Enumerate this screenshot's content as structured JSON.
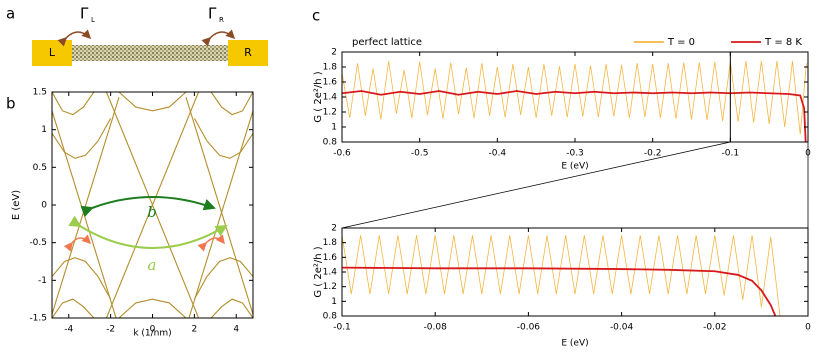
{
  "panel_labels": [
    "a",
    "b",
    "c"
  ],
  "diagram": {
    "left": "L",
    "right": "R",
    "gamma_left": {
      "symbol": "Γ",
      "sub": "L"
    },
    "gamma_right": {
      "symbol": "Γ",
      "sub": "R"
    }
  },
  "chart_data": [
    {
      "type": "line",
      "xlabel": "k (1/nm)",
      "ylabel": "E (eV)",
      "xlim": [
        -4.8,
        4.8
      ],
      "ylim": [
        -1.5,
        1.5
      ],
      "xticks": [
        -4,
        -2,
        0,
        2,
        4
      ],
      "yticks": [
        -1.5,
        -1,
        -0.5,
        0,
        0.5,
        1,
        1.5
      ],
      "annotations": [
        "b",
        "a"
      ],
      "series": [
        {
          "color": "#b38e2c",
          "x": [
            -4.8,
            -1.6
          ],
          "values": [
            -1.45,
            1.43
          ]
        },
        {
          "color": "#b38e2c",
          "x": [
            -4.8,
            -1.74
          ],
          "values": [
            1.25,
            -1.5
          ]
        },
        {
          "color": "#b38e2c",
          "x": [
            1.6,
            4.8
          ],
          "values": [
            1.43,
            -1.45
          ]
        },
        {
          "color": "#b38e2c",
          "x": [
            1.74,
            4.8
          ],
          "values": [
            -1.5,
            1.25
          ]
        },
        {
          "color": "#b38e2c",
          "x": [
            -2.2,
            2.2
          ],
          "values": [
            1.5,
            -1.5
          ]
        },
        {
          "color": "#b38e2c",
          "x": [
            -2.2,
            2.2
          ],
          "values": [
            -1.5,
            1.5
          ]
        },
        {
          "color": "#b38e2c",
          "x": [
            -4.8,
            -4.2,
            -3.7,
            -3.2,
            -2.6,
            -2.0
          ],
          "values": [
            0.95,
            0.7,
            0.62,
            0.66,
            0.85,
            1.15
          ]
        },
        {
          "color": "#b38e2c",
          "x": [
            2.0,
            2.6,
            3.2,
            3.7,
            4.2,
            4.8
          ],
          "values": [
            1.15,
            0.85,
            0.66,
            0.62,
            0.7,
            0.95
          ]
        },
        {
          "color": "#b38e2c",
          "x": [
            -4.8,
            -4.2,
            -3.7,
            -3.2,
            -2.6,
            -2.0
          ],
          "values": [
            -0.95,
            -0.75,
            -0.7,
            -0.75,
            -0.95,
            -1.25
          ]
        },
        {
          "color": "#b38e2c",
          "x": [
            2.0,
            2.6,
            3.2,
            3.7,
            4.2,
            4.8
          ],
          "values": [
            -1.25,
            -0.95,
            -0.75,
            -0.7,
            -0.75,
            -0.95
          ]
        },
        {
          "color": "#b38e2c",
          "x": [
            -1.6,
            -0.8,
            0,
            0.8,
            1.6
          ],
          "values": [
            1.5,
            1.3,
            1.25,
            1.3,
            1.5
          ]
        },
        {
          "color": "#b38e2c",
          "x": [
            -1.6,
            -0.8,
            0,
            0.8,
            1.6
          ],
          "values": [
            -1.5,
            -1.3,
            -1.25,
            -1.3,
            -1.5
          ]
        },
        {
          "color": "#b38e2c",
          "x": [
            -4.8,
            -4.3,
            -3.8,
            -3.3,
            -2.8
          ],
          "values": [
            1.5,
            1.25,
            1.2,
            1.3,
            1.5
          ]
        },
        {
          "color": "#b38e2c",
          "x": [
            2.8,
            3.3,
            3.8,
            4.3,
            4.8
          ],
          "values": [
            1.5,
            1.3,
            1.2,
            1.25,
            1.5
          ]
        },
        {
          "color": "#b38e2c",
          "x": [
            -4.8,
            -4.3,
            -3.8,
            -3.3,
            -2.8
          ],
          "values": [
            -1.5,
            -1.3,
            -1.25,
            -1.35,
            -1.5
          ]
        },
        {
          "color": "#b38e2c",
          "x": [
            2.8,
            3.3,
            3.8,
            4.3,
            4.8
          ],
          "values": [
            -1.5,
            -1.35,
            -1.25,
            -1.3,
            -1.5
          ]
        }
      ]
    },
    {
      "type": "line",
      "xlabel": "E (eV)",
      "ylabel": "G ( 2e²/h )",
      "annotation": "perfect lattice",
      "legend": "above",
      "xlim": [
        -0.6,
        0
      ],
      "ylim": [
        0.8,
        2
      ],
      "xticks": [
        -0.6,
        -0.5,
        -0.4,
        -0.3,
        -0.2,
        -0.1,
        0
      ],
      "yticks": [
        0.8,
        1,
        1.2,
        1.4,
        1.6,
        1.8,
        2
      ],
      "series": [
        {
          "name": "T = 0",
          "color": "#f5b642",
          "x": [
            -0.6,
            -0.59,
            -0.58,
            -0.57,
            -0.56,
            -0.55,
            -0.54,
            -0.53,
            -0.52,
            -0.51,
            -0.5,
            -0.49,
            -0.48,
            -0.47,
            -0.46,
            -0.45,
            -0.44,
            -0.43,
            -0.42,
            -0.41,
            -0.4,
            -0.39,
            -0.38,
            -0.37,
            -0.36,
            -0.35,
            -0.34,
            -0.33,
            -0.32,
            -0.31,
            -0.3,
            -0.29,
            -0.28,
            -0.27,
            -0.26,
            -0.25,
            -0.24,
            -0.23,
            -0.22,
            -0.21,
            -0.2,
            -0.19,
            -0.18,
            -0.17,
            -0.16,
            -0.15,
            -0.14,
            -0.13,
            -0.12,
            -0.11,
            -0.1,
            -0.09,
            -0.08,
            -0.07,
            -0.06,
            -0.05,
            -0.04,
            -0.03,
            -0.02,
            -0.01,
            -0.002
          ],
          "values": [
            1.72,
            1.12,
            1.85,
            1.15,
            1.78,
            1.1,
            1.88,
            1.18,
            1.76,
            1.12,
            1.87,
            1.16,
            1.78,
            1.11,
            1.86,
            1.17,
            1.79,
            1.12,
            1.85,
            1.15,
            1.8,
            1.13,
            1.84,
            1.16,
            1.8,
            1.12,
            1.84,
            1.15,
            1.81,
            1.13,
            1.84,
            1.14,
            1.82,
            1.13,
            1.84,
            1.14,
            1.83,
            1.12,
            1.85,
            1.13,
            1.84,
            1.12,
            1.85,
            1.11,
            1.86,
            1.1,
            1.86,
            1.09,
            1.87,
            1.08,
            1.87,
            1.07,
            1.88,
            1.06,
            1.88,
            1.04,
            1.88,
            1.0,
            1.88,
            0.9,
            1.85
          ]
        },
        {
          "name": "T = 8 K",
          "color": "#d7191c",
          "x": [
            -0.6,
            -0.575,
            -0.55,
            -0.525,
            -0.5,
            -0.475,
            -0.45,
            -0.425,
            -0.4,
            -0.375,
            -0.35,
            -0.325,
            -0.3,
            -0.275,
            -0.25,
            -0.225,
            -0.2,
            -0.175,
            -0.15,
            -0.125,
            -0.1,
            -0.075,
            -0.05,
            -0.025,
            -0.01,
            -0.005,
            -0.003
          ],
          "values": [
            1.45,
            1.48,
            1.43,
            1.47,
            1.44,
            1.48,
            1.43,
            1.47,
            1.44,
            1.48,
            1.44,
            1.47,
            1.45,
            1.47,
            1.45,
            1.46,
            1.45,
            1.46,
            1.45,
            1.46,
            1.45,
            1.46,
            1.45,
            1.44,
            1.42,
            1.25,
            0.8
          ]
        }
      ]
    },
    {
      "type": "line",
      "xlabel": "E (eV)",
      "ylabel": "G ( 2e²/h )",
      "xlim": [
        -0.1,
        0
      ],
      "ylim": [
        0.8,
        2
      ],
      "xticks": [
        -0.1,
        -0.08,
        -0.06,
        -0.04,
        -0.02,
        0
      ],
      "yticks": [
        0.8,
        1,
        1.2,
        1.4,
        1.6,
        1.8,
        2
      ],
      "series": [
        {
          "color": "#f5b642",
          "x": [
            -0.1,
            -0.098,
            -0.096,
            -0.094,
            -0.092,
            -0.09,
            -0.088,
            -0.086,
            -0.084,
            -0.082,
            -0.08,
            -0.078,
            -0.076,
            -0.074,
            -0.072,
            -0.07,
            -0.068,
            -0.066,
            -0.064,
            -0.062,
            -0.06,
            -0.058,
            -0.056,
            -0.054,
            -0.052,
            -0.05,
            -0.048,
            -0.046,
            -0.044,
            -0.042,
            -0.04,
            -0.038,
            -0.036,
            -0.034,
            -0.032,
            -0.03,
            -0.028,
            -0.026,
            -0.024,
            -0.022,
            -0.02,
            -0.018,
            -0.016,
            -0.014,
            -0.012,
            -0.01,
            -0.008,
            -0.006
          ],
          "values": [
            1.9,
            1.1,
            1.9,
            1.1,
            1.9,
            1.1,
            1.9,
            1.1,
            1.9,
            1.1,
            1.9,
            1.1,
            1.9,
            1.1,
            1.9,
            1.1,
            1.9,
            1.1,
            1.9,
            1.1,
            1.9,
            1.1,
            1.9,
            1.1,
            1.9,
            1.1,
            1.9,
            1.1,
            1.9,
            1.1,
            1.9,
            1.1,
            1.9,
            1.1,
            1.9,
            1.1,
            1.9,
            1.1,
            1.9,
            1.1,
            1.9,
            1.08,
            1.9,
            1.02,
            1.9,
            0.92,
            1.88,
            0.8
          ]
        },
        {
          "color": "#d7191c",
          "x": [
            -0.1,
            -0.08,
            -0.06,
            -0.04,
            -0.03,
            -0.02,
            -0.015,
            -0.012,
            -0.01,
            -0.008,
            -0.007
          ],
          "values": [
            1.46,
            1.45,
            1.45,
            1.44,
            1.43,
            1.41,
            1.36,
            1.28,
            1.15,
            0.95,
            0.8
          ]
        }
      ]
    }
  ]
}
